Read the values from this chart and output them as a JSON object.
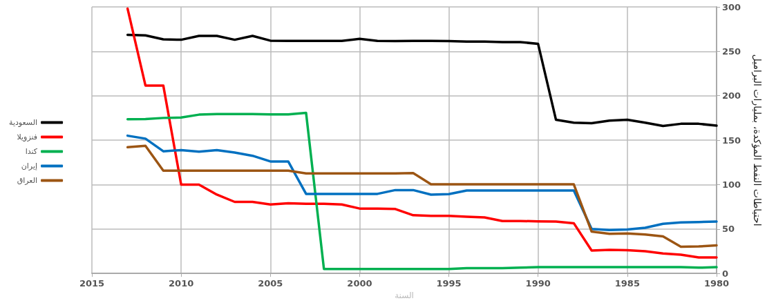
{
  "chart_data": {
    "type": "line",
    "xlabel": "السنة",
    "ylabel": "احتياطات النفط المؤكدة، بمليارات البراميل",
    "x": [
      2013,
      2012,
      2011,
      2010,
      2009,
      2008,
      2007,
      2006,
      2005,
      2004,
      2003,
      2002,
      2001,
      2000,
      1999,
      1998,
      1997,
      1996,
      1995,
      1994,
      1993,
      1992,
      1991,
      1990,
      1989,
      1988,
      1987,
      1986,
      1985,
      1984,
      1983,
      1982,
      1981,
      1980
    ],
    "series": [
      {
        "name": "السعودية",
        "color": "#000000",
        "values": [
          268.6,
          268,
          263.5,
          263,
          267.4,
          267.4,
          263,
          267.4,
          262,
          261.7,
          261.7,
          261.7,
          261.7,
          264,
          261.7,
          261.5,
          261.7,
          261.7,
          261.5,
          261,
          261,
          260.4,
          260.4,
          258.4,
          173,
          169.7,
          169,
          172,
          173,
          169.7,
          166,
          168.4,
          168.4,
          166.3
        ]
      },
      {
        "name": "فنزويلا",
        "color": "#ff0000",
        "values": [
          298,
          211.5,
          211.5,
          100,
          100,
          88.7,
          80.5,
          80.5,
          77.6,
          79,
          78.4,
          78.4,
          77.6,
          73,
          73,
          72.5,
          65.5,
          64.8,
          64.8,
          63.8,
          63,
          59,
          59,
          58.6,
          58.4,
          56.5,
          25.7,
          26.5,
          26.2,
          25,
          22.4,
          21,
          18,
          18
        ]
      },
      {
        "name": "كندا",
        "color": "#00b050",
        "values": [
          173.5,
          173.8,
          175,
          175.5,
          178.7,
          179.4,
          179.4,
          179.4,
          179,
          179,
          180.7,
          5,
          5,
          5,
          5,
          5,
          5,
          5,
          5,
          6,
          6,
          6,
          6.4,
          7,
          7,
          7,
          7,
          7,
          7,
          7,
          7,
          7,
          6.4,
          7
        ]
      },
      {
        "name": "إيران",
        "color": "#0070c0",
        "values": [
          155,
          151.7,
          137.5,
          138.8,
          137,
          138.8,
          136,
          132.4,
          126,
          126,
          89.5,
          89.5,
          89.5,
          89.5,
          89.5,
          93.8,
          93.8,
          88.7,
          89.2,
          93.3,
          93.3,
          93.3,
          93.3,
          93.3,
          93.3,
          93.3,
          50,
          48.8,
          49.4,
          51.4,
          55.8,
          57.3,
          57.8,
          58.4
        ]
      },
      {
        "name": "العراق",
        "color": "#9c5513",
        "values": [
          142,
          143.7,
          115.7,
          115.7,
          115.7,
          115.7,
          115.7,
          115.7,
          115.7,
          115.7,
          112.6,
          112.6,
          112.6,
          112.6,
          112.6,
          112.6,
          113,
          100.3,
          100.3,
          100.3,
          100.3,
          100.3,
          100.3,
          100.3,
          100.3,
          100.3,
          47,
          44.5,
          45,
          43.7,
          41.6,
          30,
          30.3,
          31.6
        ]
      }
    ],
    "xlim": [
      2015,
      1980
    ],
    "xticks": [
      2015,
      2010,
      2005,
      2000,
      1995,
      1990,
      1985,
      1980
    ],
    "ylim": [
      0,
      300
    ],
    "yticks": [
      0,
      50,
      100,
      150,
      200,
      250,
      300
    ],
    "grid": true,
    "legend": "left",
    "marker": "none",
    "line_style": "solid"
  }
}
